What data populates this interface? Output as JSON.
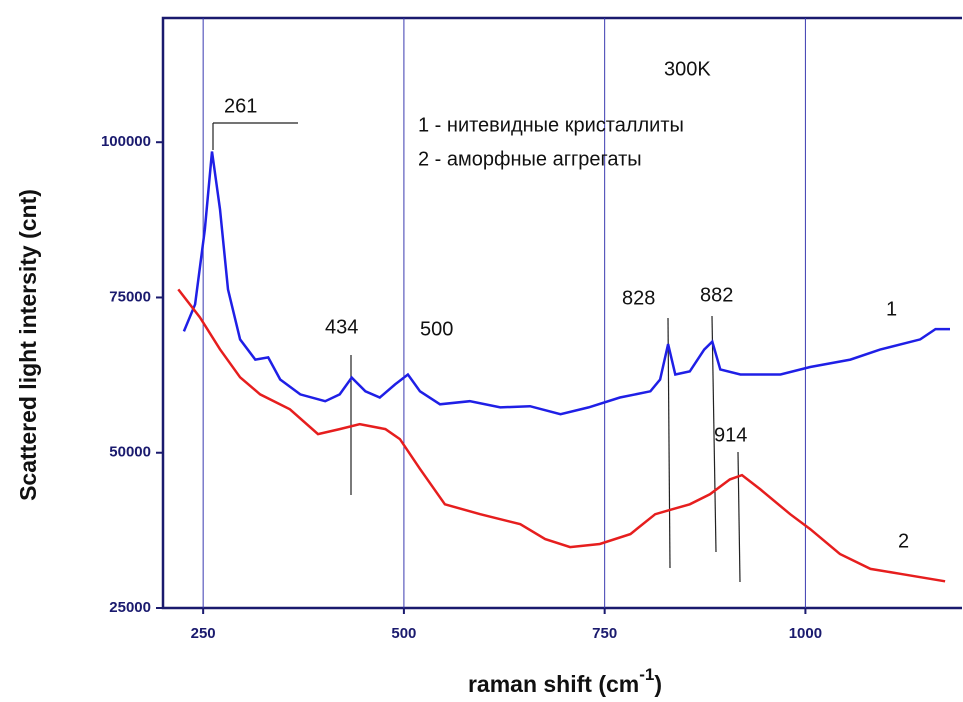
{
  "chart_data": {
    "type": "line",
    "ylabel": "Scattered light intersity (cnt)",
    "xlabel": [
      "raman shift (cm",
      "-1",
      ")"
    ],
    "annotations": [
      "261",
      "434",
      "500",
      "828",
      "882",
      "914",
      "300K",
      "1 - нитевидные кристаллиты",
      "2 - аморфные аггрегаты",
      "1",
      "2"
    ],
    "xlim": [
      200,
      1195
    ],
    "xticks": [
      250,
      500,
      750,
      1000
    ],
    "ylim": [
      25000,
      120000
    ],
    "yticks": [
      25000,
      50000,
      75000,
      100000
    ],
    "grid": true,
    "grid_color": "#3a3ab0",
    "series": [
      {
        "name": "1",
        "color": "#1f1fe6",
        "x": [
          226,
          240,
          252,
          261,
          271,
          281,
          296,
          315,
          331,
          346,
          371,
          402,
          420,
          435,
          452,
          470,
          489,
          505,
          520,
          545,
          582,
          620,
          657,
          695,
          730,
          769,
          807,
          819,
          829,
          838,
          856,
          874,
          884,
          894,
          919,
          969,
          1006,
          1056,
          1093,
          1143,
          1162,
          1180
        ],
        "values": [
          69540,
          73900,
          85900,
          98500,
          89200,
          76300,
          68250,
          65000,
          65350,
          61800,
          59400,
          58300,
          59400,
          62100,
          59900,
          58900,
          61000,
          62600,
          59900,
          57800,
          58300,
          57300,
          57500,
          56200,
          57300,
          58900,
          59900,
          61800,
          67500,
          62600,
          63100,
          66600,
          67900,
          63400,
          62600,
          62600,
          63800,
          65000,
          66600,
          68250,
          69900,
          69900
        ]
      },
      {
        "name": "2",
        "color": "#e61e1e",
        "x": [
          219,
          246,
          271,
          296,
          321,
          358,
          393,
          420,
          445,
          477,
          495,
          520,
          551,
          595,
          645,
          676,
          707,
          744,
          782,
          813,
          834,
          856,
          881,
          906,
          921,
          944,
          981,
          1006,
          1043,
          1081,
          1118,
          1174
        ],
        "values": [
          76300,
          71800,
          66650,
          62150,
          59400,
          57000,
          53000,
          53800,
          54600,
          53800,
          52200,
          47400,
          41700,
          40100,
          38500,
          36100,
          34800,
          35300,
          36900,
          40100,
          40900,
          41700,
          43300,
          45700,
          46400,
          44100,
          40100,
          37700,
          33700,
          31300,
          30500,
          29300
        ]
      }
    ]
  }
}
